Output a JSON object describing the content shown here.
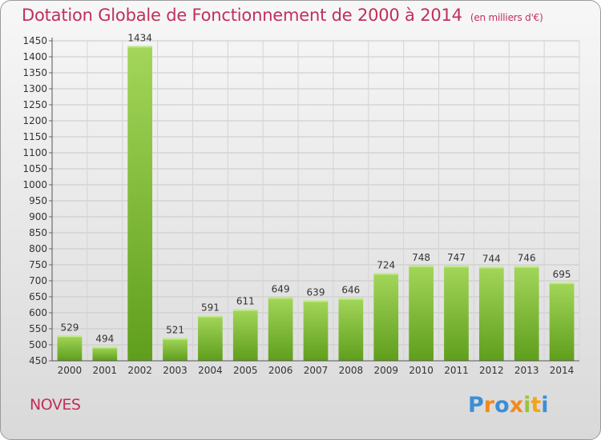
{
  "chart_data": {
    "type": "bar",
    "title": "Dotation Globale de Fonctionnement de 2000 à 2014",
    "unit": "(en milliers d'€)",
    "categories": [
      "2000",
      "2001",
      "2002",
      "2003",
      "2004",
      "2005",
      "2006",
      "2007",
      "2008",
      "2009",
      "2010",
      "2011",
      "2012",
      "2013",
      "2014"
    ],
    "values": [
      529,
      494,
      1434,
      521,
      591,
      611,
      649,
      639,
      646,
      724,
      748,
      747,
      744,
      746,
      695
    ],
    "ylim": [
      450,
      1450
    ],
    "yticks": [
      450,
      500,
      550,
      600,
      650,
      700,
      750,
      800,
      850,
      900,
      950,
      1000,
      1050,
      1100,
      1150,
      1200,
      1250,
      1300,
      1350,
      1400,
      1450
    ],
    "grid": true,
    "bar_color": "#8cc63f"
  },
  "place": "NOVES",
  "logo": {
    "text": "Proxiti"
  }
}
